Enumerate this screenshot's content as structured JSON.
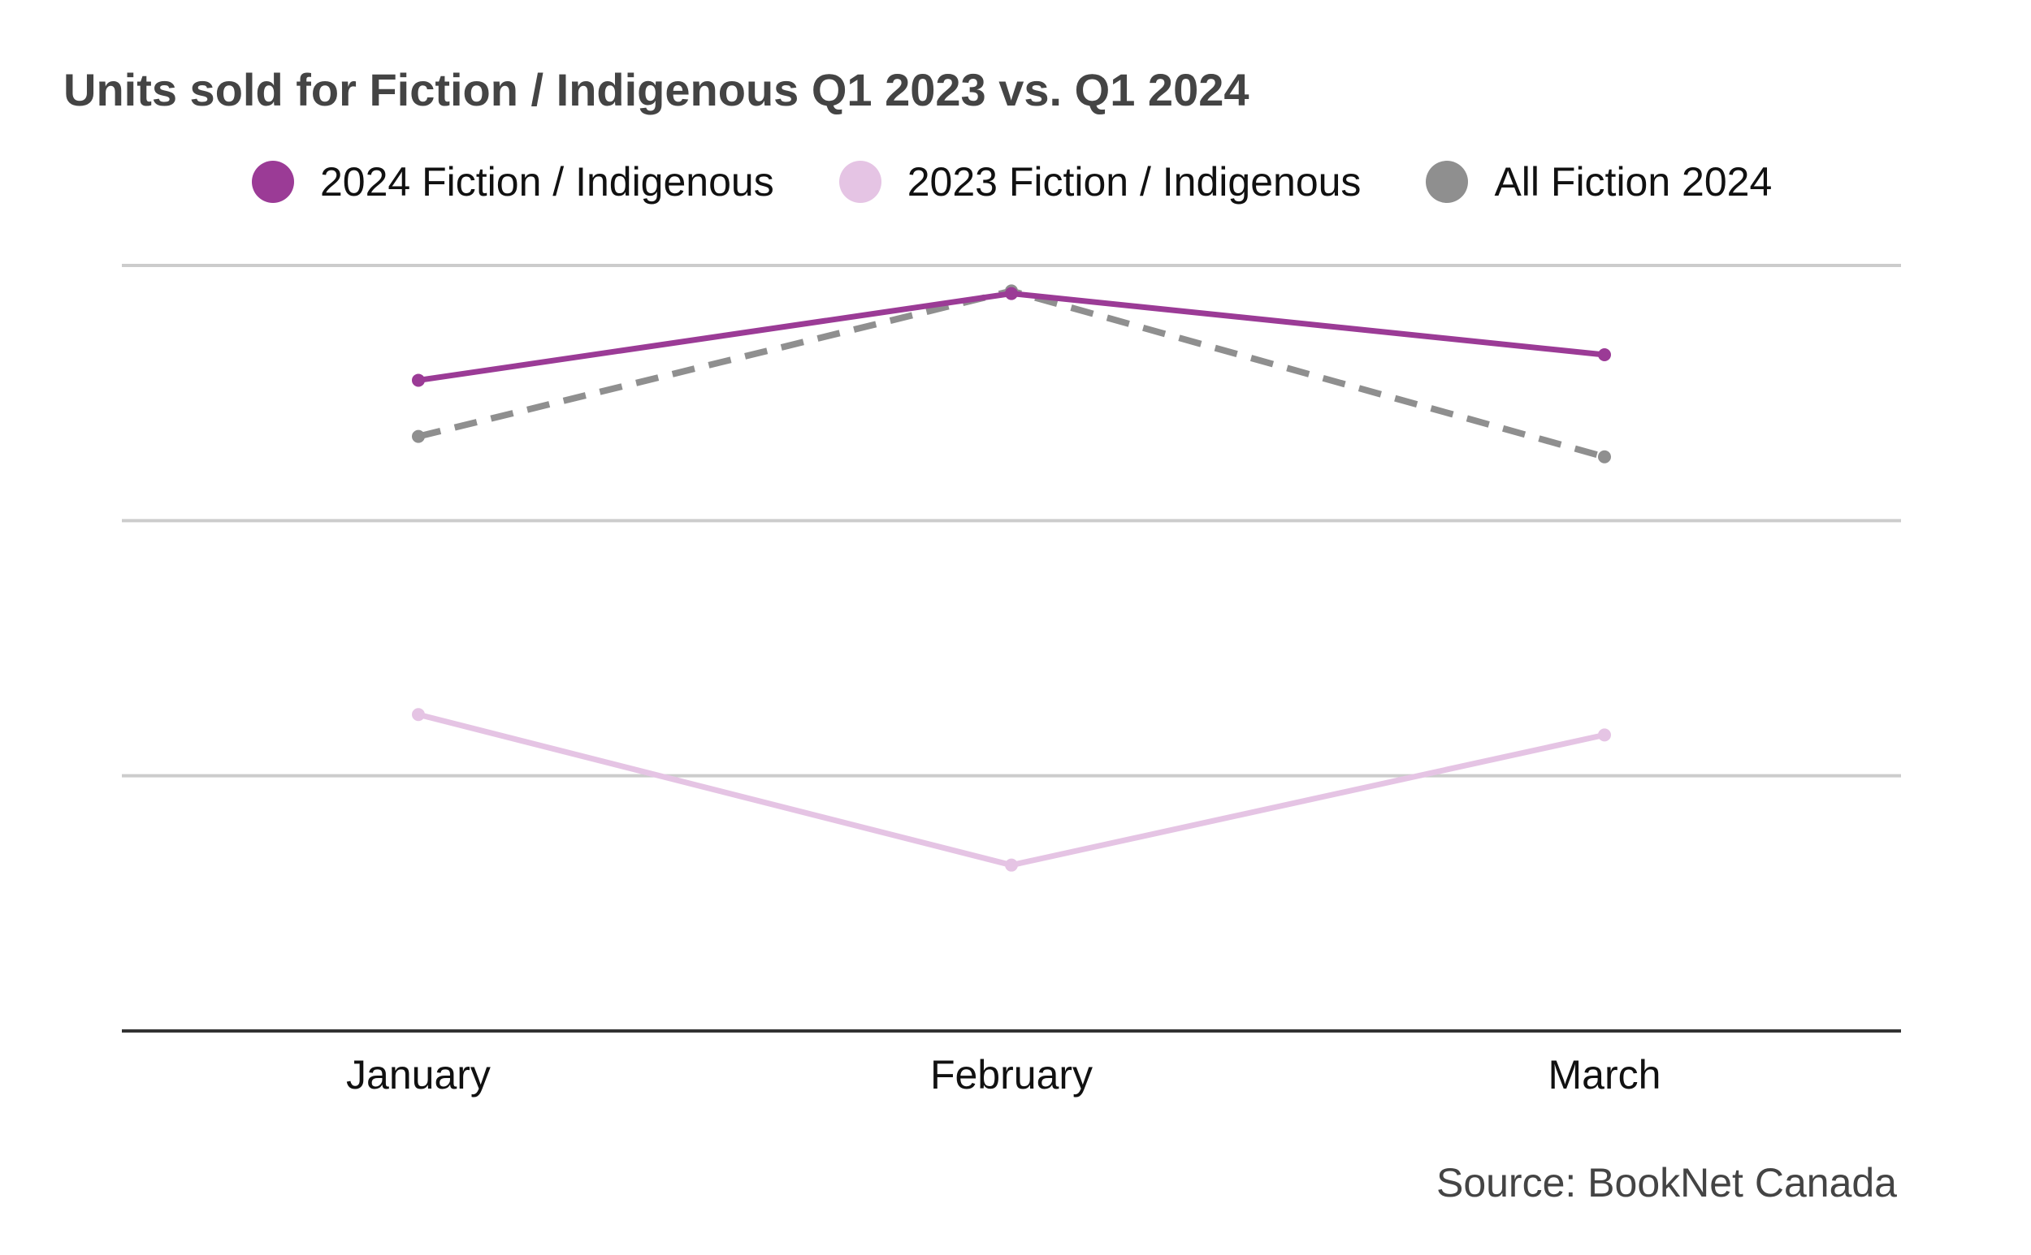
{
  "chart_data": {
    "type": "line",
    "title": "Units sold for Fiction / Indigenous Q1 2023 vs. Q1 2024",
    "categories": [
      "January",
      "February",
      "March"
    ],
    "series": [
      {
        "name": "2024 Fiction / Indigenous",
        "values": [
          2.55,
          2.89,
          2.65
        ],
        "color": "#9b3b96",
        "style": "solid"
      },
      {
        "name": "2023 Fiction / Indigenous",
        "values": [
          1.24,
          0.65,
          1.16
        ],
        "color": "#e5c4e4",
        "style": "solid"
      },
      {
        "name": "All Fiction 2024",
        "values": [
          2.33,
          2.9,
          2.25
        ],
        "color": "#8f8f8f",
        "style": "dashed"
      }
    ],
    "ylim": [
      0,
      3
    ],
    "ygrid": [
      1,
      2,
      3
    ],
    "xlabel": "",
    "ylabel": "",
    "grid": true,
    "legend_position": "top"
  },
  "source": "Source: BookNet Canada"
}
